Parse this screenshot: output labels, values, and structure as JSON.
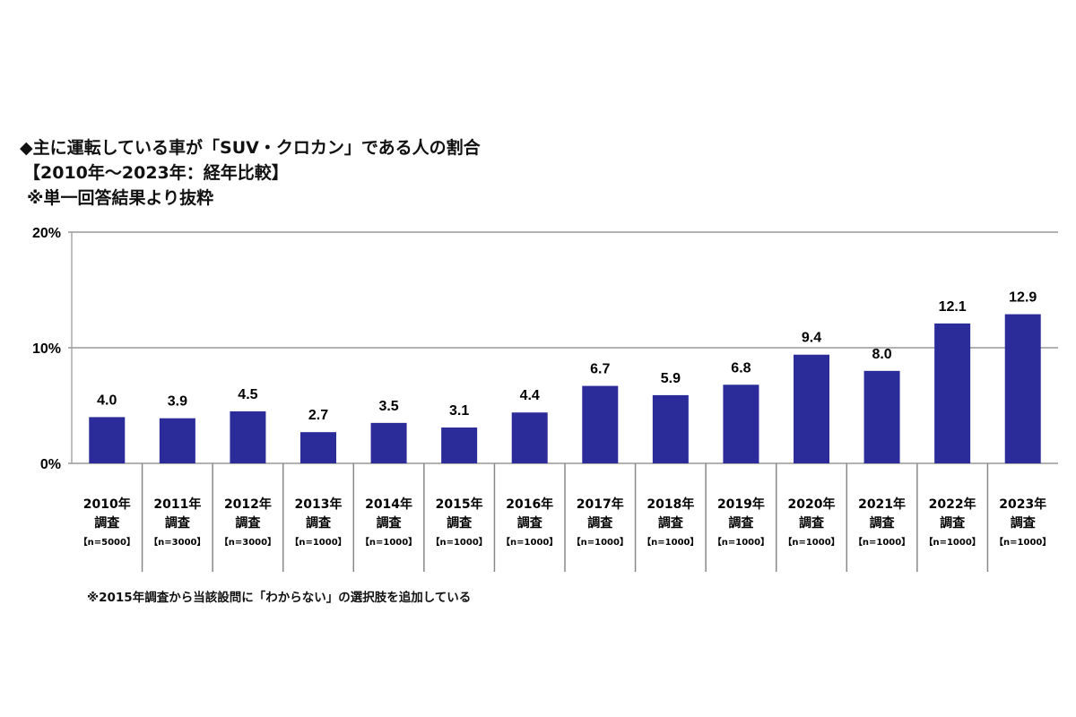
{
  "chart_data": {
    "type": "bar",
    "title": "◆主に運転している車が「SUV・クロカン」である人の割合",
    "subtitle": "【2010年～2023年：経年比較】",
    "subtitle2": "※単一回答結果より抜粋",
    "categories": [
      "2010年",
      "2011年",
      "2012年",
      "2013年",
      "2014年",
      "2015年",
      "2016年",
      "2017年",
      "2018年",
      "2019年",
      "2020年",
      "2021年",
      "2022年",
      "2023年"
    ],
    "category_line2": "調査",
    "sample_sizes": [
      "【n=5000】",
      "【n=3000】",
      "【n=3000】",
      "【n=1000】",
      "【n=1000】",
      "【n=1000】",
      "【n=1000】",
      "【n=1000】",
      "【n=1000】",
      "【n=1000】",
      "【n=1000】",
      "【n=1000】",
      "【n=1000】",
      "【n=1000】"
    ],
    "values": [
      4.0,
      3.9,
      4.5,
      2.7,
      3.5,
      3.1,
      4.4,
      6.7,
      5.9,
      6.8,
      9.4,
      8.0,
      12.1,
      12.9
    ],
    "ylim": [
      0,
      20
    ],
    "yticks": [
      "0%",
      "10%",
      "20%"
    ],
    "grid": true,
    "bar_color": "#2b2b9a",
    "footnote": "※2015年調査から当該設問に「わからない」の選択肢を追加している"
  }
}
